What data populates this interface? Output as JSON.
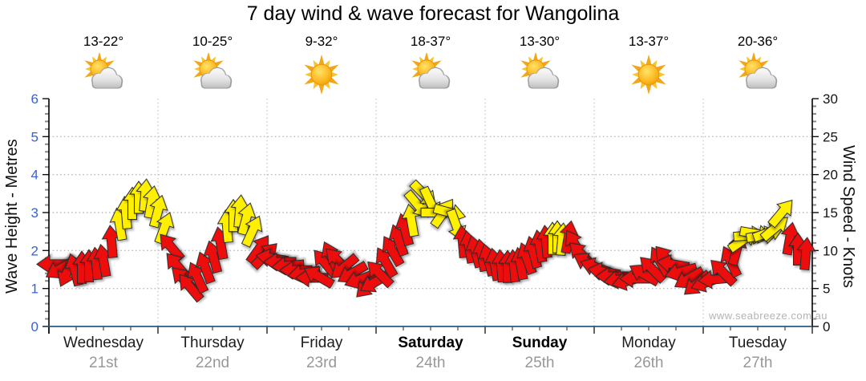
{
  "title": "7 day wind & wave forecast for Wangolina",
  "watermark": "www.seabreeze.com.au",
  "y_left": {
    "label": "Wave Height - Metres",
    "ticks": [
      0,
      1,
      2,
      3,
      4,
      5,
      6
    ]
  },
  "y_right": {
    "label": "Wind Speed - Knots",
    "ticks": [
      0,
      5,
      10,
      15,
      20,
      25,
      30
    ]
  },
  "days": [
    {
      "name": "Wednesday",
      "date": "21st",
      "temp": "13-22°",
      "icon": "sun-cloud",
      "bold": false
    },
    {
      "name": "Thursday",
      "date": "22nd",
      "temp": "10-25°",
      "icon": "sun-cloud",
      "bold": false
    },
    {
      "name": "Friday",
      "date": "23rd",
      "temp": "9-32°",
      "icon": "sun",
      "bold": false
    },
    {
      "name": "Saturday",
      "date": "24th",
      "temp": "18-37°",
      "icon": "sun-cloud",
      "bold": true
    },
    {
      "name": "Sunday",
      "date": "25th",
      "temp": "13-30°",
      "icon": "sun-cloud",
      "bold": true
    },
    {
      "name": "Monday",
      "date": "26th",
      "temp": "13-37°",
      "icon": "sun",
      "bold": false
    },
    {
      "name": "Tuesday",
      "date": "27th",
      "temp": "20-36°",
      "icon": "sun-cloud",
      "bold": false
    }
  ],
  "colors": {
    "arrow_red": "#ee0e0e",
    "arrow_yellow": "#fff000",
    "arrow_outline": "#2a2a2a",
    "axis_blue_labels": "#3b62c8",
    "right_labels": "#141414",
    "x_axis_line": "#2a5a80",
    "y_axis_line": "#000000",
    "gridline": "#b8b8b8",
    "day_gridline": "#c4c4c4",
    "connector": "#a8a8a8",
    "date_gray": "#989898",
    "watermark_gray": "#b4b4b4"
  },
  "chart_data": {
    "type": "wind-arrow-series",
    "title": "7 day wind & wave forecast for Wangolina",
    "x_axis_days": [
      "Wednesday 21st",
      "Thursday 22nd",
      "Friday 23rd",
      "Saturday 24th",
      "Sunday 25th",
      "Monday 26th",
      "Tuesday 27th"
    ],
    "y_left_label": "Wave Height - Metres",
    "y_left_range": [
      0,
      6
    ],
    "y_right_label": "Wind Speed - Knots",
    "y_right_range": [
      0,
      30
    ],
    "grid": "dotted horizontal each metre, dotted vertical each day boundary",
    "arrow_note": "each arrow = forecast wind: vertical position = knots (right axis), rotation = direction (0=up, 90=right), color r=red light wind, y=yellow moderate",
    "x_unit": "px from start of Wednesday, 136 px per day, plot width 952",
    "arrows": [
      [
        5,
        8.2,
        270,
        "r"
      ],
      [
        14,
        7.6,
        240,
        "r"
      ],
      [
        23,
        7.2,
        205,
        "r"
      ],
      [
        32,
        7.5,
        345,
        "r"
      ],
      [
        41,
        7.8,
        0,
        "r"
      ],
      [
        50,
        8.0,
        0,
        "r"
      ],
      [
        59,
        8.3,
        355,
        "r"
      ],
      [
        68,
        8.7,
        350,
        "r"
      ],
      [
        78,
        11.2,
        355,
        "r"
      ],
      [
        88,
        13.5,
        350,
        "y"
      ],
      [
        96,
        15.0,
        355,
        "y"
      ],
      [
        104,
        16.2,
        0,
        "y"
      ],
      [
        112,
        17.0,
        0,
        "y"
      ],
      [
        120,
        17.3,
        5,
        "y"
      ],
      [
        128,
        16.4,
        10,
        "y"
      ],
      [
        136,
        15.2,
        15,
        "y"
      ],
      [
        144,
        13.0,
        20,
        "y"
      ],
      [
        152,
        10.5,
        320,
        "r"
      ],
      [
        160,
        8.0,
        320,
        "r"
      ],
      [
        168,
        6.2,
        315,
        "r"
      ],
      [
        176,
        5.2,
        320,
        "r"
      ],
      [
        185,
        6.5,
        335,
        "r"
      ],
      [
        195,
        7.8,
        340,
        "r"
      ],
      [
        205,
        9.2,
        345,
        "r"
      ],
      [
        214,
        11.0,
        350,
        "r"
      ],
      [
        222,
        13.2,
        355,
        "y"
      ],
      [
        230,
        14.6,
        0,
        "y"
      ],
      [
        238,
        15.2,
        5,
        "y"
      ],
      [
        246,
        14.2,
        15,
        "y"
      ],
      [
        254,
        12.6,
        25,
        "y"
      ],
      [
        262,
        10.2,
        35,
        "r"
      ],
      [
        270,
        9.4,
        45,
        "r"
      ],
      [
        278,
        9.0,
        280,
        "r"
      ],
      [
        288,
        8.5,
        270,
        "r"
      ],
      [
        298,
        8.0,
        265,
        "r"
      ],
      [
        308,
        7.4,
        270,
        "r"
      ],
      [
        318,
        7.0,
        260,
        "r"
      ],
      [
        328,
        6.4,
        270,
        "r"
      ],
      [
        336,
        6.6,
        300,
        "r"
      ],
      [
        344,
        8.4,
        320,
        "r"
      ],
      [
        352,
        9.2,
        335,
        "r"
      ],
      [
        360,
        8.7,
        315,
        "r"
      ],
      [
        368,
        7.8,
        230,
        "r"
      ],
      [
        378,
        7.0,
        240,
        "r"
      ],
      [
        388,
        6.2,
        250,
        "r"
      ],
      [
        398,
        5.4,
        225,
        "r"
      ],
      [
        406,
        5.8,
        240,
        "r"
      ],
      [
        412,
        7.0,
        315,
        "r"
      ],
      [
        420,
        8.5,
        330,
        "r"
      ],
      [
        428,
        10.0,
        330,
        "r"
      ],
      [
        436,
        11.4,
        340,
        "r"
      ],
      [
        444,
        12.8,
        345,
        "r"
      ],
      [
        452,
        14.0,
        350,
        "y"
      ],
      [
        460,
        16.0,
        140,
        "y"
      ],
      [
        468,
        17.4,
        135,
        "y"
      ],
      [
        476,
        16.3,
        155,
        "y"
      ],
      [
        484,
        15.0,
        90,
        "y"
      ],
      [
        492,
        15.0,
        35,
        "y"
      ],
      [
        500,
        15.0,
        105,
        "y"
      ],
      [
        508,
        13.3,
        160,
        "y"
      ],
      [
        516,
        11.2,
        355,
        "r"
      ],
      [
        524,
        10.5,
        350,
        "r"
      ],
      [
        532,
        9.9,
        345,
        "r"
      ],
      [
        540,
        9.4,
        350,
        "r"
      ],
      [
        548,
        8.8,
        345,
        "r"
      ],
      [
        556,
        8.2,
        350,
        "r"
      ],
      [
        564,
        8.0,
        355,
        "r"
      ],
      [
        572,
        7.9,
        0,
        "r"
      ],
      [
        580,
        8.0,
        355,
        "r"
      ],
      [
        588,
        8.3,
        350,
        "r"
      ],
      [
        596,
        9.0,
        340,
        "r"
      ],
      [
        604,
        9.8,
        345,
        "r"
      ],
      [
        612,
        10.6,
        350,
        "r"
      ],
      [
        620,
        11.2,
        355,
        "r"
      ],
      [
        628,
        11.6,
        0,
        "y"
      ],
      [
        634,
        11.8,
        0,
        "y"
      ],
      [
        640,
        11.5,
        5,
        "y"
      ],
      [
        648,
        11.8,
        10,
        "r"
      ],
      [
        656,
        10.8,
        330,
        "r"
      ],
      [
        664,
        9.5,
        315,
        "r"
      ],
      [
        672,
        8.4,
        300,
        "r"
      ],
      [
        682,
        7.8,
        290,
        "r"
      ],
      [
        692,
        7.2,
        280,
        "r"
      ],
      [
        702,
        6.6,
        270,
        "r"
      ],
      [
        712,
        6.2,
        260,
        "r"
      ],
      [
        722,
        6.0,
        255,
        "r"
      ],
      [
        732,
        6.3,
        270,
        "r"
      ],
      [
        742,
        6.9,
        300,
        "r"
      ],
      [
        752,
        7.6,
        315,
        "r"
      ],
      [
        762,
        8.6,
        330,
        "r"
      ],
      [
        770,
        8.9,
        320,
        "r"
      ],
      [
        778,
        8.2,
        280,
        "r"
      ],
      [
        788,
        7.2,
        255,
        "r"
      ],
      [
        798,
        6.3,
        240,
        "r"
      ],
      [
        808,
        5.6,
        230,
        "r"
      ],
      [
        820,
        5.8,
        250,
        "r"
      ],
      [
        830,
        6.2,
        265,
        "r"
      ],
      [
        840,
        7.2,
        315,
        "r"
      ],
      [
        850,
        8.6,
        335,
        "r"
      ],
      [
        858,
        10.2,
        15,
        "r"
      ],
      [
        866,
        11.4,
        55,
        "y"
      ],
      [
        874,
        12.0,
        85,
        "y"
      ],
      [
        882,
        12.2,
        100,
        "y"
      ],
      [
        890,
        12.0,
        80,
        "y"
      ],
      [
        898,
        12.4,
        70,
        "y"
      ],
      [
        906,
        13.0,
        50,
        "y"
      ],
      [
        914,
        15.0,
        40,
        "y"
      ],
      [
        924,
        11.6,
        10,
        "r"
      ],
      [
        934,
        10.2,
        0,
        "r"
      ],
      [
        944,
        9.6,
        5,
        "r"
      ]
    ]
  }
}
